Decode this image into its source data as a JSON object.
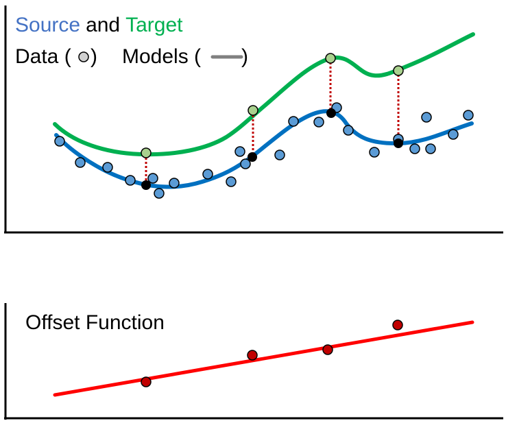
{
  "top_panel": {
    "legend": {
      "source": "Source",
      "and": "and",
      "target": "Target",
      "data_label": "Data (",
      "data_close": ")",
      "models_label": "Models (",
      "models_close": ")"
    },
    "colors": {
      "source": "#4472C4",
      "target": "#00B050",
      "source_curve": "#0070C0",
      "target_curve": "#00B050",
      "source_point_fill": "#5B9BD5",
      "target_point_fill": "#A9D18E",
      "model_point_fill": "#000000",
      "link": "#C00000",
      "legend_line": "#808080",
      "axis": "#000000"
    }
  },
  "bottom_panel": {
    "title": "Offset Function",
    "colors": {
      "line": "#FF0000",
      "point_fill": "#C00000",
      "axis": "#000000"
    }
  }
}
